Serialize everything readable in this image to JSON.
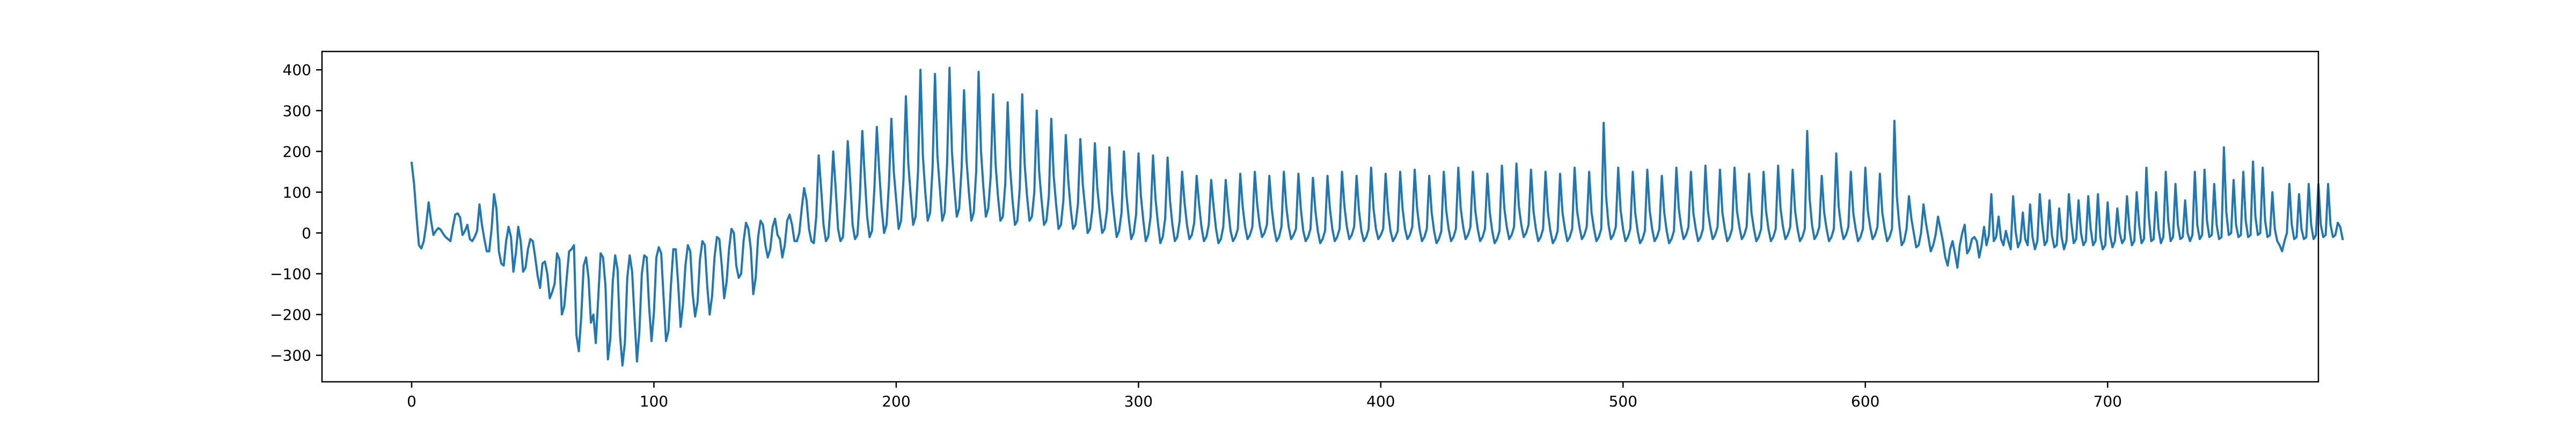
{
  "chart_data": {
    "type": "line",
    "title": "",
    "xlabel": "",
    "ylabel": "",
    "xlim": [
      -37,
      787
    ],
    "ylim": [
      -365,
      445
    ],
    "xticks": [
      0,
      100,
      200,
      300,
      400,
      500,
      600,
      700
    ],
    "yticks": [
      -300,
      -200,
      -100,
      0,
      100,
      200,
      300,
      400
    ],
    "grid": false,
    "legend": "none",
    "series": [
      {
        "color": "#1f77b4",
        "x_start": 0,
        "x_step": 1,
        "values": [
          172,
          120,
          40,
          -30,
          -38,
          -20,
          20,
          75,
          30,
          -5,
          5,
          12,
          8,
          -2,
          -10,
          -15,
          -20,
          15,
          45,
          48,
          38,
          -5,
          5,
          20,
          -15,
          -20,
          -10,
          5,
          70,
          20,
          -15,
          -45,
          -45,
          10,
          95,
          60,
          -45,
          -75,
          -80,
          -20,
          15,
          -10,
          -95,
          -50,
          15,
          -20,
          -95,
          -85,
          -40,
          -15,
          -20,
          -60,
          -105,
          -135,
          -75,
          -70,
          -100,
          -160,
          -145,
          -125,
          -50,
          -65,
          -200,
          -180,
          -110,
          -45,
          -40,
          -30,
          -250,
          -290,
          -205,
          -80,
          -60,
          -110,
          -220,
          -200,
          -270,
          -160,
          -50,
          -60,
          -130,
          -310,
          -260,
          -120,
          -55,
          -90,
          -250,
          -325,
          -270,
          -110,
          -55,
          -95,
          -210,
          -315,
          -240,
          -100,
          -55,
          -60,
          -180,
          -265,
          -195,
          -60,
          -35,
          -50,
          -160,
          -265,
          -240,
          -130,
          -40,
          -40,
          -125,
          -230,
          -175,
          -80,
          -30,
          -45,
          -150,
          -205,
          -170,
          -65,
          -20,
          -30,
          -130,
          -200,
          -155,
          -60,
          -10,
          -15,
          -80,
          -160,
          -120,
          -40,
          10,
          0,
          -80,
          -110,
          -100,
          -20,
          25,
          10,
          -40,
          -150,
          -110,
          -10,
          30,
          20,
          -30,
          -60,
          -40,
          15,
          35,
          -5,
          -15,
          -60,
          -30,
          30,
          45,
          20,
          -20,
          -20,
          0,
          60,
          110,
          80,
          10,
          -20,
          -25,
          40,
          190,
          110,
          20,
          -20,
          -10,
          80,
          200,
          110,
          10,
          -20,
          -10,
          90,
          225,
          130,
          20,
          -15,
          -5,
          90,
          250,
          140,
          40,
          -10,
          5,
          110,
          260,
          150,
          60,
          0,
          20,
          120,
          280,
          150,
          80,
          10,
          30,
          130,
          335,
          170,
          90,
          20,
          40,
          150,
          400,
          190,
          100,
          30,
          50,
          160,
          390,
          190,
          110,
          30,
          50,
          170,
          405,
          200,
          110,
          40,
          60,
          160,
          350,
          180,
          100,
          30,
          50,
          150,
          395,
          200,
          110,
          40,
          60,
          140,
          340,
          170,
          90,
          30,
          40,
          120,
          320,
          160,
          80,
          20,
          30,
          110,
          340,
          170,
          90,
          30,
          40,
          100,
          300,
          150,
          80,
          20,
          30,
          90,
          280,
          140,
          70,
          10,
          20,
          80,
          240,
          130,
          60,
          10,
          20,
          70,
          230,
          120,
          60,
          0,
          10,
          60,
          220,
          110,
          50,
          0,
          10,
          55,
          210,
          100,
          40,
          -10,
          5,
          50,
          200,
          95,
          35,
          -15,
          0,
          45,
          195,
          90,
          30,
          -20,
          -5,
          40,
          190,
          85,
          25,
          -25,
          -10,
          35,
          185,
          80,
          20,
          -20,
          -10,
          30,
          150,
          75,
          20,
          -15,
          -5,
          25,
          140,
          70,
          15,
          -20,
          -10,
          20,
          130,
          65,
          10,
          -25,
          -15,
          15,
          130,
          60,
          5,
          -20,
          -10,
          10,
          145,
          65,
          15,
          -15,
          -5,
          15,
          150,
          70,
          20,
          -10,
          0,
          20,
          140,
          60,
          10,
          -20,
          -10,
          15,
          150,
          65,
          15,
          -15,
          -5,
          10,
          145,
          60,
          5,
          -20,
          -10,
          10,
          135,
          55,
          5,
          -25,
          -15,
          5,
          140,
          60,
          10,
          -20,
          -10,
          10,
          150,
          65,
          15,
          -15,
          -5,
          15,
          140,
          55,
          5,
          -20,
          -10,
          10,
          160,
          60,
          10,
          -15,
          -5,
          10,
          145,
          55,
          5,
          -20,
          -10,
          5,
          150,
          60,
          10,
          -15,
          -5,
          15,
          155,
          60,
          10,
          -20,
          -10,
          10,
          140,
          50,
          5,
          -25,
          -15,
          5,
          150,
          55,
          10,
          -20,
          -10,
          10,
          160,
          60,
          15,
          -15,
          -5,
          15,
          150,
          55,
          10,
          -20,
          -10,
          10,
          145,
          50,
          5,
          -25,
          -15,
          5,
          165,
          60,
          15,
          -15,
          -5,
          15,
          170,
          65,
          20,
          -10,
          0,
          20,
          155,
          55,
          10,
          -20,
          -10,
          10,
          150,
          50,
          5,
          -25,
          -15,
          5,
          145,
          50,
          10,
          -20,
          -10,
          10,
          160,
          55,
          15,
          -15,
          -5,
          15,
          150,
          50,
          10,
          -20,
          -10,
          10,
          270,
          90,
          20,
          -15,
          -5,
          15,
          160,
          55,
          10,
          -20,
          -10,
          10,
          150,
          50,
          5,
          -25,
          -15,
          5,
          155,
          55,
          10,
          -20,
          -10,
          10,
          140,
          50,
          5,
          -25,
          -15,
          5,
          160,
          60,
          15,
          -15,
          -5,
          15,
          150,
          50,
          10,
          -20,
          -10,
          10,
          165,
          55,
          15,
          -15,
          -5,
          15,
          155,
          50,
          10,
          -20,
          -10,
          10,
          160,
          55,
          15,
          -15,
          -5,
          15,
          145,
          50,
          10,
          -20,
          -10,
          10,
          150,
          55,
          10,
          -20,
          -10,
          10,
          165,
          60,
          15,
          -15,
          -5,
          15,
          155,
          55,
          10,
          -20,
          -10,
          10,
          250,
          85,
          20,
          -15,
          -5,
          15,
          140,
          50,
          10,
          -20,
          -10,
          10,
          195,
          65,
          15,
          -15,
          -5,
          15,
          150,
          50,
          10,
          -20,
          -10,
          10,
          160,
          55,
          15,
          -15,
          -5,
          15,
          145,
          50,
          10,
          -20,
          -10,
          10,
          275,
          90,
          20,
          -30,
          -20,
          10,
          90,
          35,
          0,
          -35,
          -30,
          0,
          70,
          25,
          -10,
          -45,
          -30,
          -5,
          40,
          10,
          -20,
          -60,
          -80,
          -40,
          -20,
          -50,
          -85,
          -30,
          0,
          20,
          -50,
          -40,
          -15,
          -10,
          -20,
          -60,
          -30,
          15,
          -30,
          -5,
          95,
          -20,
          -10,
          40,
          -15,
          -30,
          5,
          -20,
          -40,
          90,
          5,
          -35,
          -20,
          50,
          -15,
          -30,
          70,
          -10,
          -40,
          -20,
          95,
          20,
          -30,
          -20,
          80,
          -5,
          -35,
          -30,
          60,
          -10,
          -40,
          -20,
          95,
          25,
          -25,
          -15,
          80,
          0,
          -30,
          -20,
          90,
          10,
          -30,
          -20,
          95,
          -10,
          -40,
          -30,
          75,
          -5,
          -35,
          -20,
          60,
          0,
          -25,
          -15,
          90,
          10,
          -30,
          -20,
          100,
          20,
          -25,
          -15,
          160,
          40,
          -20,
          -15,
          100,
          10,
          -25,
          -10,
          150,
          30,
          -20,
          -10,
          120,
          20,
          -15,
          -10,
          80,
          0,
          -20,
          -5,
          150,
          20,
          -15,
          -5,
          155,
          30,
          -10,
          -5,
          120,
          20,
          -15,
          -10,
          210,
          50,
          -5,
          0,
          130,
          20,
          -10,
          -5,
          150,
          30,
          -10,
          -5,
          175,
          40,
          -5,
          0,
          160,
          30,
          -10,
          -5,
          100,
          10,
          -20,
          -30,
          -45,
          -20,
          0,
          120,
          20,
          -15,
          -10,
          95,
          10,
          -15,
          -10,
          120,
          20,
          -15,
          -5,
          120,
          20,
          -10,
          -5,
          120,
          20,
          -10,
          -5,
          25,
          15,
          -15
        ]
      }
    ]
  }
}
